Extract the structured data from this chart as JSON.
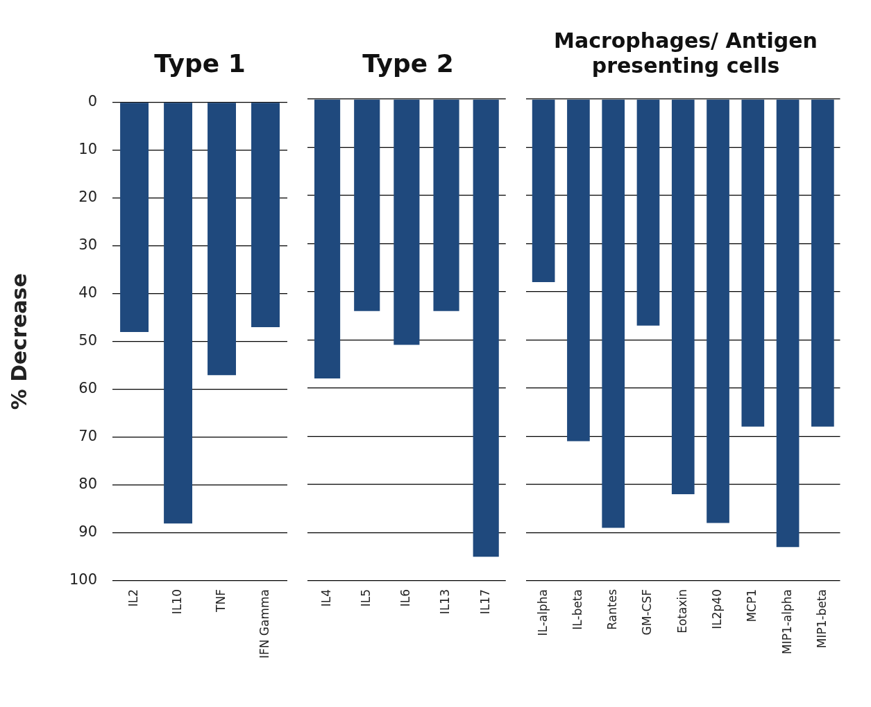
{
  "chart_data": [
    {
      "type": "bar",
      "title": "Type 1",
      "ylabel": "% Decrease",
      "categories": [
        "IL2",
        "IL10",
        "TNF",
        "IFN Gamma"
      ],
      "values": [
        48,
        88,
        57,
        47
      ],
      "color": "#1f497d",
      "ylim": [
        100,
        0
      ],
      "yticks": [
        0,
        10,
        20,
        30,
        40,
        50,
        60,
        70,
        80,
        90,
        100
      ],
      "grid": "y"
    },
    {
      "type": "bar",
      "title": "Type 2",
      "categories": [
        "IL4",
        "IL5",
        "IL6",
        "IL13",
        "IL17"
      ],
      "values": [
        58,
        44,
        51,
        44,
        95
      ],
      "color": "#1f497d",
      "ylim": [
        100,
        0
      ],
      "yticks": [
        0,
        10,
        20,
        30,
        40,
        50,
        60,
        70,
        80,
        90,
        100
      ],
      "grid": "y",
      "tick_labels": "x"
    },
    {
      "type": "bar",
      "title": "Macrophages/ Antigen presenting cells",
      "categories": [
        "IL-alpha",
        "IL-beta",
        "Rantes",
        "GM-CSF",
        "Eotaxin",
        "IL2p40",
        "MCP1",
        "MIP1-alpha",
        "MIP1-beta"
      ],
      "values": [
        38,
        71,
        89,
        47,
        82,
        88,
        68,
        93,
        68
      ],
      "color": "#1f497d",
      "ylim": [
        100,
        0
      ],
      "yticks": [
        0,
        10,
        20,
        30,
        40,
        50,
        60,
        70,
        80,
        90,
        100
      ],
      "grid": "y",
      "tick_labels": "x"
    }
  ]
}
